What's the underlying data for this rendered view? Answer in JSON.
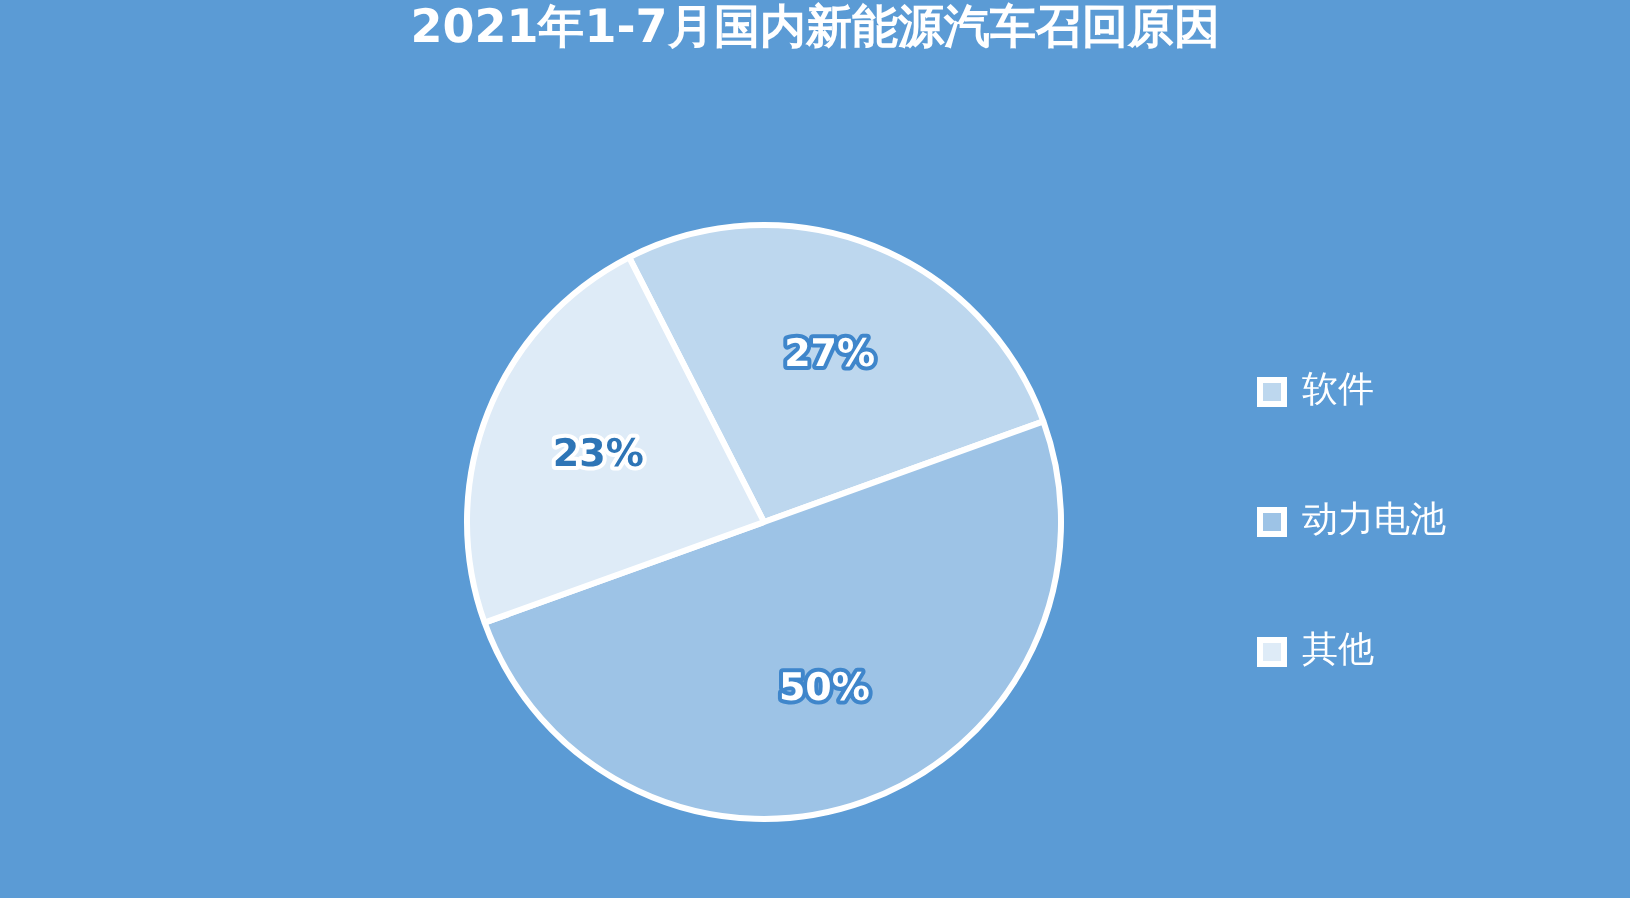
{
  "chart_data": {
    "type": "pie",
    "title": "2021年1-7月国内新能源汽车召回原因",
    "categories": [
      "软件",
      "动力电池",
      "其他"
    ],
    "values": [
      27,
      50,
      23
    ],
    "colors": [
      "#bdd7ee",
      "#9dc3e6",
      "#deebf7"
    ],
    "value_labels": [
      "27%",
      "50%",
      "23%"
    ],
    "legend": "right"
  }
}
